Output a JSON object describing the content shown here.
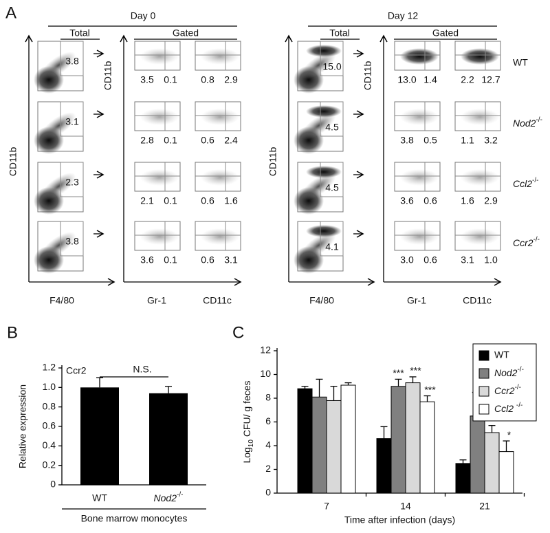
{
  "panel_a": {
    "letter": "A",
    "days": [
      {
        "title": "Day 0",
        "total_label": "Total",
        "gated_label": "Gated",
        "y_label": "CD11b",
        "gated_y_label": "CD11b",
        "x_labels": [
          "F4/80",
          "Gr-1",
          "CD11c"
        ],
        "rows": [
          {
            "total": "3.8",
            "gr1": [
              "3.5",
              "0.1"
            ],
            "cd11c": [
              "0.8",
              "2.9"
            ]
          },
          {
            "total": "3.1",
            "gr1": [
              "2.8",
              "0.1"
            ],
            "cd11c": [
              "0.6",
              "2.4"
            ]
          },
          {
            "total": "2.3",
            "gr1": [
              "2.1",
              "0.1"
            ],
            "cd11c": [
              "0.6",
              "1.6"
            ]
          },
          {
            "total": "3.8",
            "gr1": [
              "3.6",
              "0.1"
            ],
            "cd11c": [
              "0.6",
              "3.1"
            ]
          }
        ]
      },
      {
        "title": "Day 12",
        "total_label": "Total",
        "gated_label": "Gated",
        "y_label": "CD11b",
        "gated_y_label": "CD11b",
        "x_labels": [
          "F4/80",
          "Gr-1",
          "CD11c"
        ],
        "rows": [
          {
            "total": "15.0",
            "gr1": [
              "13.0",
              "1.4"
            ],
            "cd11c": [
              "2.2",
              "12.7"
            ]
          },
          {
            "total": "4.5",
            "gr1": [
              "3.8",
              "0.5"
            ],
            "cd11c": [
              "1.1",
              "3.2"
            ]
          },
          {
            "total": "4.5",
            "gr1": [
              "3.6",
              "0.6"
            ],
            "cd11c": [
              "1.6",
              "2.9"
            ]
          },
          {
            "total": "4.1",
            "gr1": [
              "3.0",
              "0.6"
            ],
            "cd11c": [
              "3.1",
              "1.0"
            ]
          }
        ]
      }
    ],
    "genotypes": [
      "WT",
      "Nod2-/-",
      "Ccl2-/-",
      "Ccr2-/-"
    ]
  },
  "chart_data": [
    {
      "type": "bar",
      "letter": "B",
      "annotation": "Ccr2",
      "significance": "N.S.",
      "y_label": "Relative expression",
      "x_label": "Bone marrow monocytes",
      "categories": [
        "WT",
        "Nod2-/-"
      ],
      "values": [
        1.0,
        0.94
      ],
      "errors": [
        0.1,
        0.07
      ],
      "color": "#000000",
      "ylim": [
        0,
        1.2
      ],
      "yticks": [
        0,
        0.2,
        0.4,
        0.6,
        0.8,
        {
          "value": 1,
          "label": "1.0"
        },
        1.2
      ]
    },
    {
      "type": "grouped_bar",
      "letter": "C",
      "y_label": "Log10 CFU/ g feces",
      "x_label": "Time after infection (days)",
      "categories": [
        "7",
        "14",
        "21"
      ],
      "ylim": [
        0,
        12
      ],
      "yticks": [
        0,
        2,
        4,
        6,
        8,
        10,
        12
      ],
      "series": [
        {
          "name": "WT",
          "color": "#000000",
          "values": [
            8.8,
            4.6,
            2.5
          ],
          "errors": [
            0.2,
            1.0,
            0.3
          ],
          "significance": [
            null,
            null,
            null
          ]
        },
        {
          "name": "Nod2-/-",
          "color": "#808080",
          "values": [
            8.1,
            9.0,
            6.5
          ],
          "errors": [
            1.5,
            0.6,
            1.3
          ],
          "significance": [
            null,
            "***",
            "***"
          ]
        },
        {
          "name": "Ccr2-/-",
          "color": "#d9d9d9",
          "values": [
            7.8,
            9.3,
            5.1
          ],
          "errors": [
            1.2,
            0.5,
            0.6
          ],
          "significance": [
            null,
            "***",
            "***"
          ]
        },
        {
          "name": "Ccl2 -/-",
          "color": "#ffffff",
          "values": [
            9.1,
            7.7,
            3.5
          ],
          "errors": [
            0.2,
            0.5,
            0.9
          ],
          "significance": [
            null,
            "***",
            "*"
          ]
        }
      ]
    }
  ]
}
